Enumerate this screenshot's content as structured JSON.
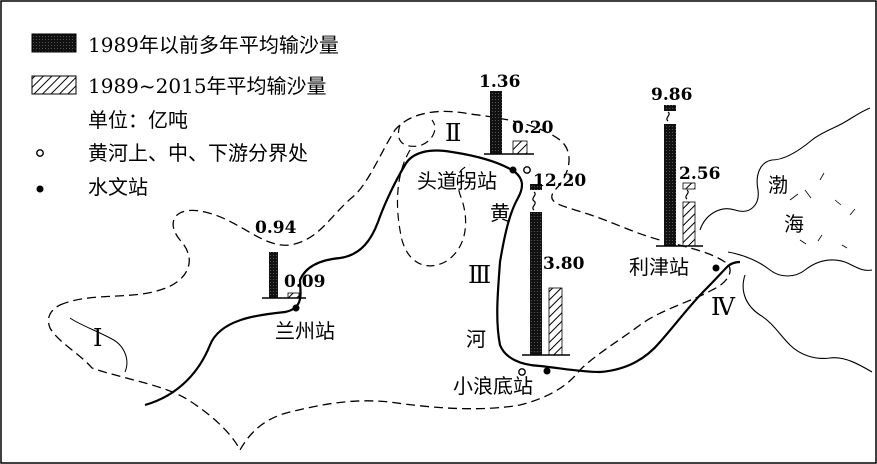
{
  "legend": {
    "item1_label": "1989年以前多年平均输沙量",
    "item2_label": "1989~2015年平均输沙量",
    "unit": "单位：亿吨",
    "boundary_label": "黄河上、中、下游分界处",
    "station_label": "水文站"
  },
  "map": {
    "river_name_chars": [
      "黄",
      "河"
    ],
    "sea_name_chars": [
      "渤",
      "海"
    ],
    "section_labels": [
      "Ⅰ",
      "Ⅱ",
      "Ⅲ",
      "Ⅳ"
    ]
  },
  "stations": [
    {
      "name": "兰州站",
      "before_1989": "0.94",
      "after_1989": "0.09"
    },
    {
      "name": "头道拐站",
      "before_1989": "1.36",
      "after_1989": "0.20"
    },
    {
      "name": "小浪底站",
      "before_1989": "12.20",
      "after_1989": "3.80"
    },
    {
      "name": "利津站",
      "before_1989": "9.86",
      "after_1989": "2.56"
    }
  ],
  "colors": {
    "solid_bar": "#111111",
    "hatch": "#000000",
    "background": "#ffffff"
  }
}
